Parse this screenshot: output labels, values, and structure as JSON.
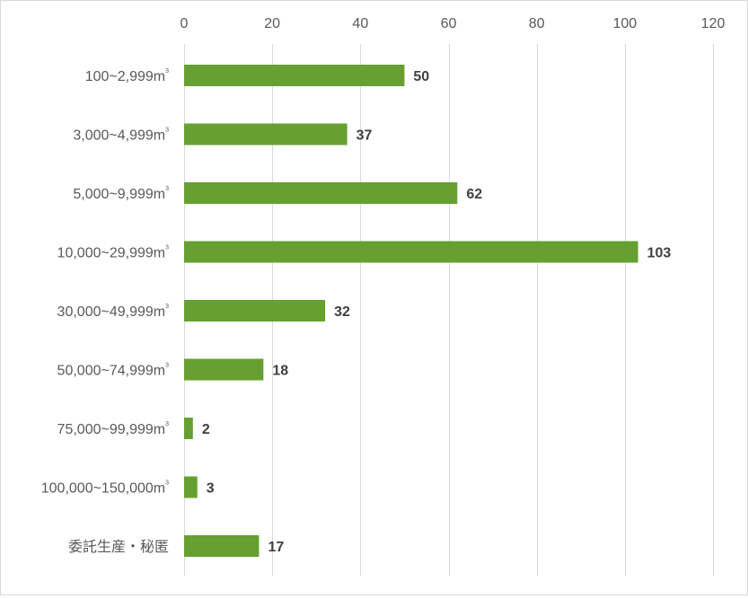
{
  "chart_data": {
    "type": "bar",
    "orientation": "horizontal",
    "title": "",
    "xlabel": "",
    "ylabel": "",
    "categories": [
      {
        "label": "100~2,999m",
        "sup": "3"
      },
      {
        "label": "3,000~4,999m",
        "sup": "3"
      },
      {
        "label": "5,000~9,999m",
        "sup": "3"
      },
      {
        "label": "10,000~29,999m",
        "sup": "3"
      },
      {
        "label": "30,000~49,999m",
        "sup": "3"
      },
      {
        "label": "50,000~74,999m",
        "sup": "3"
      },
      {
        "label": "75,000~99,999m",
        "sup": "3"
      },
      {
        "label": "100,000~150,000m",
        "sup": "3"
      },
      {
        "label": "委託生産・秘匿",
        "sup": ""
      }
    ],
    "values": [
      50,
      37,
      62,
      103,
      32,
      18,
      2,
      3,
      17
    ],
    "xlim": [
      0,
      120
    ],
    "x_ticks": [
      0,
      20,
      40,
      60,
      80,
      100,
      120
    ],
    "x_axis_position": "top",
    "grid": "vertical",
    "data_labels": true,
    "legend": "none",
    "bar_color": "#65a030",
    "grid_color": "#d9d9d9"
  }
}
